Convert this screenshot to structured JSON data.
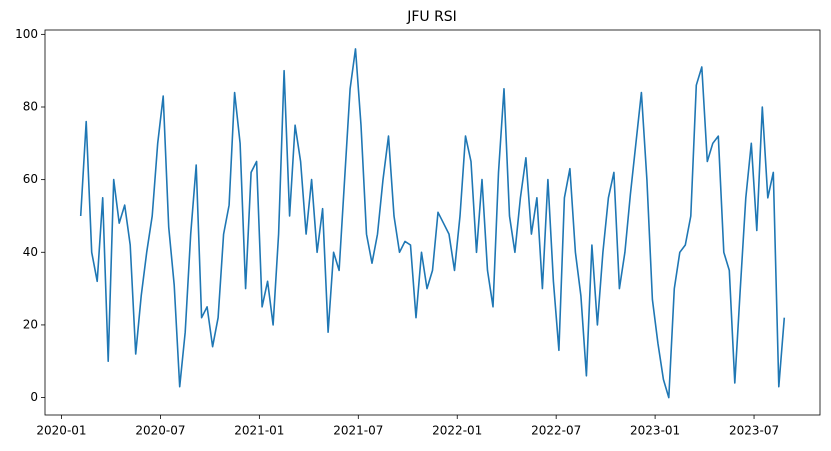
{
  "chart_data": {
    "type": "line",
    "title": "JFU RSI",
    "color": "#1f77b4",
    "x": [
      "2020-02",
      "2020-02",
      "2020-02",
      "2020-03",
      "2020-03",
      "2020-03",
      "2020-04",
      "2020-04",
      "2020-04",
      "2020-05",
      "2020-05",
      "2020-05",
      "2020-06",
      "2020-06",
      "2020-06",
      "2020-07",
      "2020-07",
      "2020-07",
      "2020-08",
      "2020-08",
      "2020-08",
      "2020-09",
      "2020-09",
      "2020-09",
      "2020-10",
      "2020-10",
      "2020-10",
      "2020-11",
      "2020-11",
      "2020-11",
      "2020-12",
      "2020-12",
      "2020-12",
      "2021-01",
      "2021-01",
      "2021-01",
      "2021-02",
      "2021-02",
      "2021-02",
      "2021-03",
      "2021-03",
      "2021-03",
      "2021-04",
      "2021-04",
      "2021-04",
      "2021-05",
      "2021-05",
      "2021-05",
      "2021-06",
      "2021-06",
      "2021-06",
      "2021-07",
      "2021-07",
      "2021-07",
      "2021-08",
      "2021-08",
      "2021-08",
      "2021-09",
      "2021-09",
      "2021-09",
      "2021-10",
      "2021-10",
      "2021-10",
      "2021-11",
      "2021-11",
      "2021-11",
      "2021-12",
      "2021-12",
      "2021-12",
      "2022-01",
      "2022-01",
      "2022-01",
      "2022-02",
      "2022-02",
      "2022-02",
      "2022-03",
      "2022-03",
      "2022-03",
      "2022-04",
      "2022-04",
      "2022-04",
      "2022-05",
      "2022-05",
      "2022-05",
      "2022-06",
      "2022-06",
      "2022-06",
      "2022-07",
      "2022-07",
      "2022-07",
      "2022-08",
      "2022-08",
      "2022-08",
      "2022-09",
      "2022-09",
      "2022-09",
      "2022-10",
      "2022-10",
      "2022-10",
      "2022-11",
      "2022-11",
      "2022-11",
      "2022-12",
      "2022-12",
      "2022-12",
      "2023-01",
      "2023-01",
      "2023-01",
      "2023-02",
      "2023-02",
      "2023-02",
      "2023-03",
      "2023-03",
      "2023-03",
      "2023-04",
      "2023-04",
      "2023-04",
      "2023-05",
      "2023-05",
      "2023-05",
      "2023-06",
      "2023-06",
      "2023-06",
      "2023-07",
      "2023-07",
      "2023-07",
      "2023-08",
      "2023-08",
      "2023-08"
    ],
    "values": [
      50,
      76,
      40,
      32,
      55,
      10,
      60,
      48,
      53,
      42,
      12,
      28,
      40,
      50,
      70,
      83,
      47,
      31,
      3,
      18,
      45,
      64,
      22,
      25,
      14,
      22,
      45,
      53,
      84,
      70,
      30,
      62,
      65,
      25,
      32,
      20,
      45,
      90,
      50,
      75,
      65,
      45,
      60,
      40,
      52,
      18,
      40,
      35,
      60,
      85,
      96,
      75,
      45,
      37,
      45,
      60,
      72,
      50,
      40,
      43,
      42,
      22,
      40,
      30,
      35,
      51,
      48,
      45,
      35,
      50,
      72,
      65,
      40,
      60,
      35,
      25,
      62,
      85,
      50,
      40,
      55,
      66,
      45,
      55,
      30,
      60,
      32,
      13,
      55,
      63,
      40,
      28,
      6,
      42,
      20,
      40,
      55,
      62,
      30,
      40,
      56,
      70,
      84,
      60,
      27,
      15,
      5,
      0,
      30,
      40,
      42,
      50,
      86,
      91,
      65,
      70,
      72,
      40,
      35,
      4,
      30,
      55,
      70,
      46,
      80,
      55,
      62,
      3,
      22
    ],
    "xlim": [
      "2019-12",
      "2023-11"
    ],
    "xticks": [
      "2020-01",
      "2020-07",
      "2021-01",
      "2021-07",
      "2022-01",
      "2022-07",
      "2023-01",
      "2023-07"
    ],
    "ylim": [
      -4.8,
      101.2
    ],
    "yticks": [
      0,
      20,
      40,
      60,
      80,
      100
    ]
  }
}
